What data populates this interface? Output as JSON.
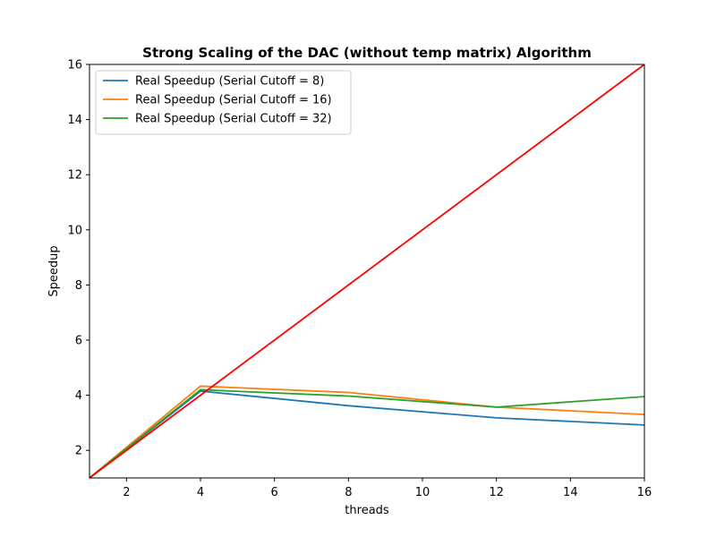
{
  "chart_data": {
    "type": "line",
    "title": "Strong Scaling of the DAC (without temp matrix) Algorithm",
    "xlabel": "threads",
    "ylabel": "Speedup",
    "xlim": [
      1,
      16
    ],
    "ylim": [
      1,
      16
    ],
    "xticks": [
      2,
      4,
      6,
      8,
      10,
      12,
      14,
      16
    ],
    "yticks": [
      2,
      4,
      6,
      8,
      10,
      12,
      14,
      16
    ],
    "grid": false,
    "legend_position": "top-left",
    "x": [
      1,
      4,
      8,
      12,
      16
    ],
    "series": [
      {
        "name": "Real Speedup (Serial Cutoff = 8)",
        "values": [
          1,
          4.15,
          3.62,
          3.18,
          2.92
        ],
        "color": "#1f77b4",
        "in_legend": true
      },
      {
        "name": "Real Speedup (Serial Cutoff = 16)",
        "values": [
          1,
          4.33,
          4.1,
          3.57,
          3.3
        ],
        "color": "#ff7f0e",
        "in_legend": true
      },
      {
        "name": "Real Speedup (Serial Cutoff = 32)",
        "values": [
          1,
          4.2,
          3.97,
          3.57,
          3.95
        ],
        "color": "#2ca02c",
        "in_legend": true
      },
      {
        "name": "",
        "x": [
          1,
          16
        ],
        "values": [
          1,
          16
        ],
        "color": "#ff0000",
        "in_legend": false
      }
    ]
  }
}
